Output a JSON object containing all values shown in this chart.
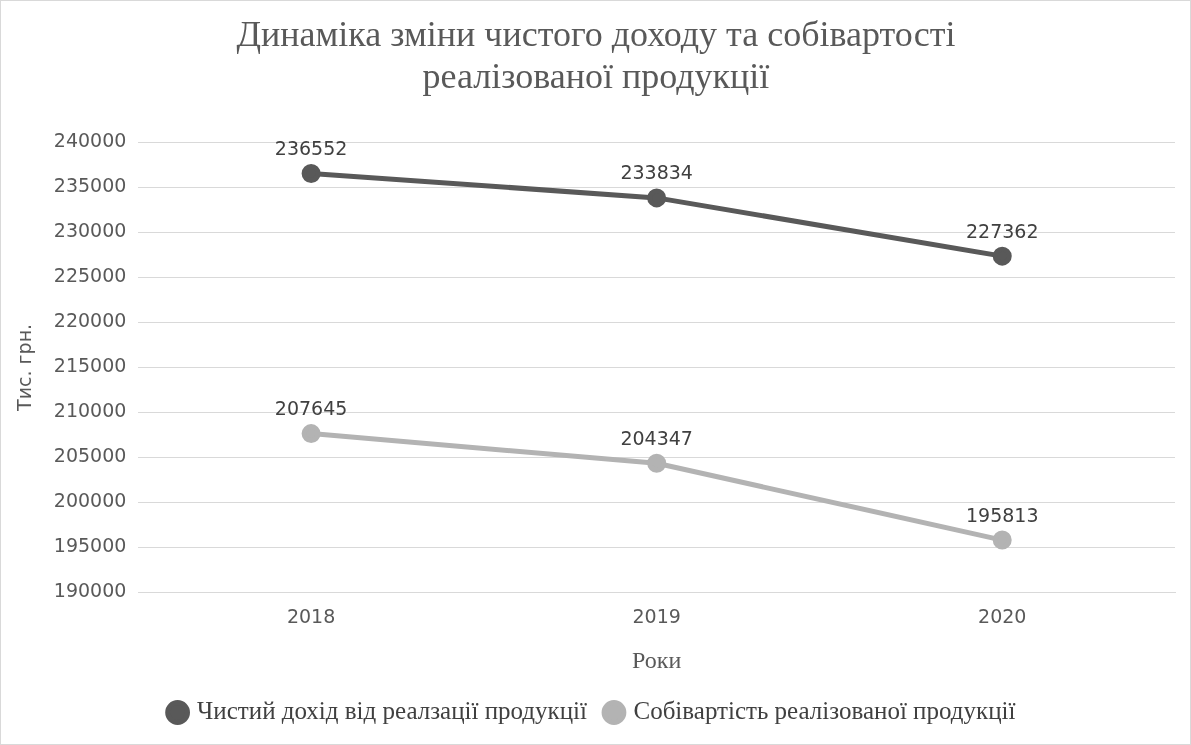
{
  "chart_data": {
    "type": "line",
    "title": "Динаміка зміни чистого доходу та собівартості реалізованої продукції",
    "xlabel": "Роки",
    "ylabel": "Тис. грн.",
    "categories": [
      "2018",
      "2019",
      "2020"
    ],
    "series": [
      {
        "name": "Чистий дохід від реалзації продукції",
        "color": "#595959",
        "values": [
          236552,
          233834,
          227362
        ]
      },
      {
        "name": "Собівартість реалізованої продукції",
        "color": "#b3b3b3",
        "values": [
          207645,
          204347,
          195813
        ]
      }
    ],
    "ylim": [
      190000,
      240000
    ],
    "yticks": [
      190000,
      195000,
      200000,
      205000,
      210000,
      215000,
      220000,
      225000,
      230000,
      235000,
      240000
    ],
    "grid": "y",
    "legend": "bottom",
    "marker": "circle",
    "line_style": "solid",
    "data_labels": true
  }
}
